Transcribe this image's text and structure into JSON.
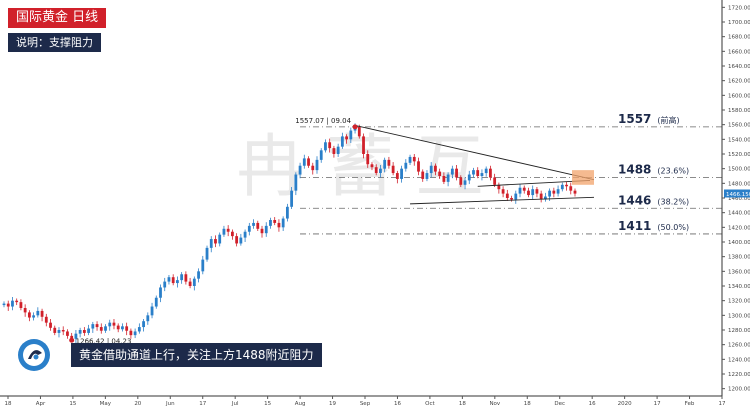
{
  "header": {
    "title": "国际黄金  日线",
    "subtitle": "说明：支撑阻力"
  },
  "note": "黄金借助通道上行，关注上方1488附近阻力",
  "watermark": "冉 蓄 互",
  "colors": {
    "up": "#2a7fc9",
    "down": "#d1202a",
    "title_bg": "#d1202a",
    "subtitle_bg": "#1d2a4a",
    "resistance_box": "#f2a36b"
  },
  "chart_data": {
    "type": "candlestick",
    "ylim": [
      1190,
      1730
    ],
    "y_ticks": [
      1200,
      1220,
      1240,
      1260,
      1280,
      1300,
      1320,
      1340,
      1360,
      1380,
      1400,
      1420,
      1440,
      1460,
      1480,
      1500,
      1520,
      1540,
      1560,
      1580,
      1600,
      1620,
      1640,
      1660,
      1680,
      1700,
      1720
    ],
    "x_labels": [
      "18",
      "Apr",
      "15",
      "May",
      "20",
      "Jun",
      "17",
      "Jul",
      "15",
      "Aug",
      "19",
      "Sep",
      "16",
      "Oct",
      "18",
      "Nov",
      "18",
      "Dec",
      "16",
      "2020",
      "17",
      "Feb",
      "17"
    ],
    "current_price": "1466.150",
    "levels": [
      {
        "price": 1557,
        "label": "1557",
        "pct": "(前高)"
      },
      {
        "price": 1488,
        "label": "1488",
        "pct": "(23.6%)"
      },
      {
        "price": 1446,
        "label": "1446",
        "pct": "(38.2%)"
      },
      {
        "price": 1411,
        "label": "1411",
        "pct": "(50.0%)"
      }
    ],
    "annotations": [
      {
        "text": "1557.07",
        "date": "09.04",
        "price": 1557
      },
      {
        "text": "1266.42",
        "date": "04.23",
        "price": 1266
      }
    ],
    "closes": [
      1316,
      1312,
      1320,
      1318,
      1310,
      1304,
      1297,
      1300,
      1306,
      1298,
      1290,
      1283,
      1276,
      1280,
      1278,
      1272,
      1268,
      1275,
      1280,
      1276,
      1282,
      1288,
      1284,
      1279,
      1285,
      1290,
      1286,
      1281,
      1285,
      1279,
      1273,
      1278,
      1284,
      1292,
      1300,
      1312,
      1324,
      1338,
      1346,
      1352,
      1344,
      1348,
      1356,
      1346,
      1340,
      1350,
      1360,
      1376,
      1392,
      1404,
      1398,
      1410,
      1418,
      1414,
      1408,
      1398,
      1406,
      1414,
      1422,
      1426,
      1418,
      1412,
      1422,
      1430,
      1426,
      1420,
      1432,
      1448,
      1470,
      1492,
      1504,
      1514,
      1504,
      1498,
      1512,
      1525,
      1536,
      1528,
      1520,
      1530,
      1544,
      1540,
      1552,
      1557,
      1544,
      1520,
      1506,
      1502,
      1494,
      1500,
      1512,
      1504,
      1494,
      1486,
      1500,
      1508,
      1516,
      1510,
      1496,
      1486,
      1494,
      1504,
      1496,
      1490,
      1482,
      1492,
      1500,
      1488,
      1478,
      1484,
      1492,
      1498,
      1490,
      1494,
      1500,
      1488,
      1478,
      1472,
      1466,
      1460,
      1458,
      1466,
      1474,
      1470,
      1464,
      1472,
      1466,
      1458,
      1462,
      1470,
      1466,
      1472,
      1478,
      1476,
      1470,
      1466
    ]
  }
}
